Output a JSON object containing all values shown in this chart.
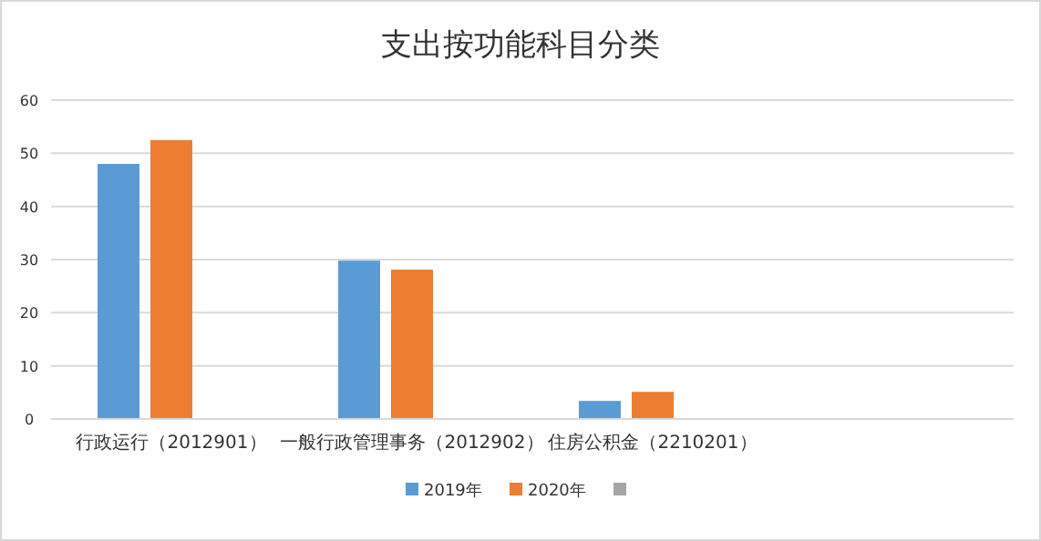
{
  "chart_data": {
    "type": "bar",
    "title": "支出按功能科目分类",
    "categories": [
      "行政运行（2012901）",
      "一般行政管理事务（2012902）",
      "住房公积金（2210201）",
      null
    ],
    "series": [
      {
        "name": "2019年",
        "color": "#5b9bd5",
        "values": [
          48,
          29.8,
          3.4,
          null
        ]
      },
      {
        "name": "2020年",
        "color": "#ed7d31",
        "values": [
          52.5,
          28.1,
          5.1,
          null
        ]
      },
      {
        "color": "#a5a5a5",
        "values": [
          null,
          null,
          null,
          null
        ]
      }
    ],
    "ylim": [
      0,
      60
    ],
    "yticks": [
      0,
      10,
      20,
      30,
      40,
      50,
      60
    ],
    "grid": "y",
    "legend": "bottom"
  }
}
